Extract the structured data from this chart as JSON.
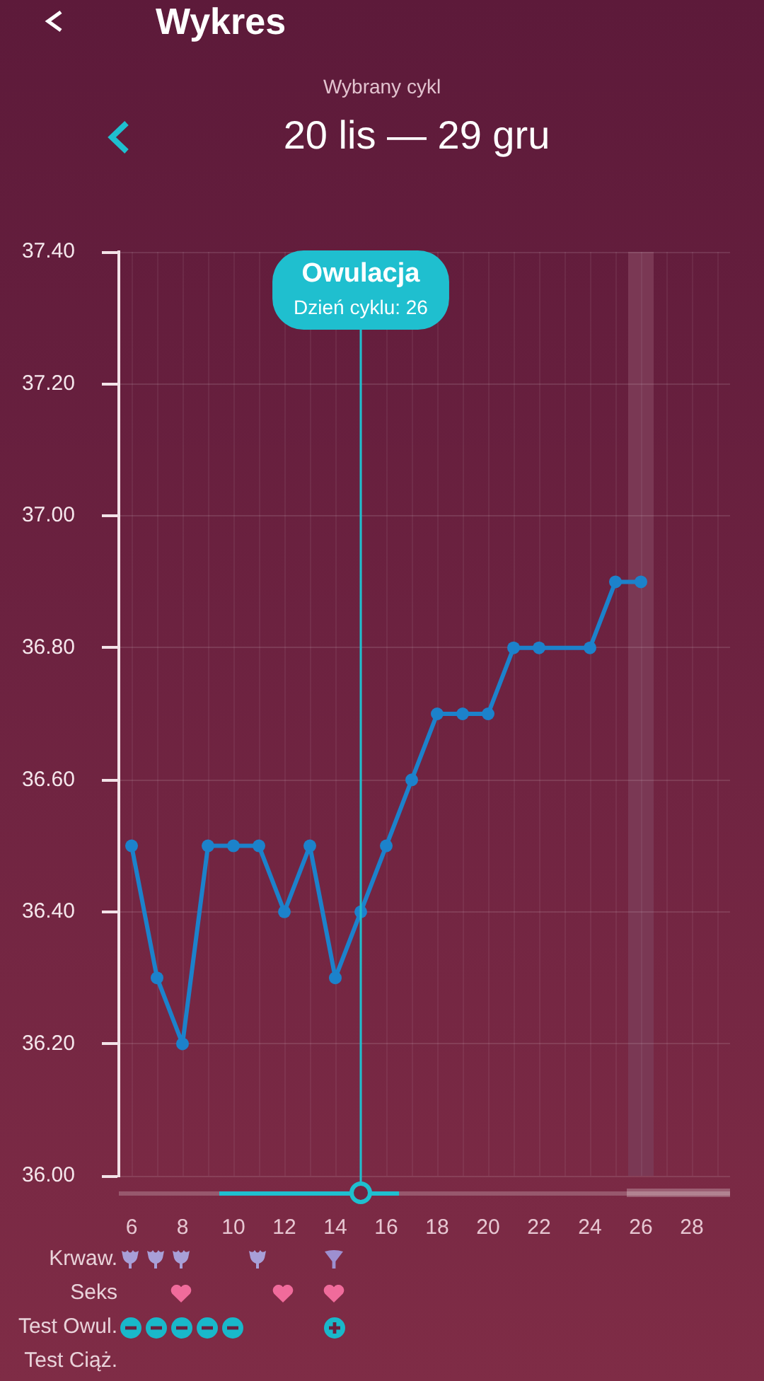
{
  "chart_data": {
    "type": "line",
    "title": "20 lis — 29 gru",
    "subtitle": "Wybrany cykl",
    "annotations": [
      "Wykres",
      "Dzień cyklu: 26",
      "Krwaw.",
      "Seks",
      "Test Owul.",
      "Test Ciąż."
    ],
    "x": [
      6,
      7,
      8,
      9,
      10,
      11,
      12,
      13,
      14,
      15,
      16,
      17,
      18,
      19,
      20,
      21,
      22,
      24,
      25,
      26
    ],
    "series": [
      {
        "color": "#1c82cb",
        "values": [
          36.5,
          36.3,
          36.2,
          36.5,
          36.5,
          36.5,
          36.4,
          36.5,
          36.3,
          36.4,
          36.5,
          36.6,
          36.7,
          36.7,
          36.7,
          36.8,
          36.8,
          36.8,
          36.9,
          36.9
        ]
      }
    ],
    "xlim": [
      5.5,
      29.5
    ],
    "xticks": [
      6,
      {
        "value": 7,
        "label": null
      },
      8,
      {
        "value": 9,
        "label": null
      },
      10,
      {
        "value": 11,
        "label": null
      },
      12,
      {
        "value": 13,
        "label": null
      },
      14,
      {
        "value": 15,
        "label": null
      },
      16,
      {
        "value": 17,
        "label": null
      },
      18,
      {
        "value": 19,
        "label": null
      },
      20,
      {
        "value": 21,
        "label": null
      },
      22,
      {
        "value": 23,
        "label": null
      },
      24,
      {
        "value": 25,
        "label": null
      },
      26,
      {
        "value": 27,
        "label": null
      },
      28,
      {
        "value": 29,
        "label": null
      }
    ],
    "ylim": [
      36,
      37.4
    ],
    "yticks": [
      {
        "value": 36,
        "label": "36.00"
      },
      {
        "value": 36.2,
        "label": "36.20"
      },
      {
        "value": 36.4,
        "label": "36.40"
      },
      {
        "value": 36.6,
        "label": "36.60"
      },
      {
        "value": 36.8,
        "label": "36.80"
      },
      {
        "value": 37,
        "label": "37.00"
      },
      {
        "value": 37.2,
        "label": "37.20"
      },
      {
        "value": 37.4,
        "label": "37.40"
      }
    ],
    "grid": true,
    "marker": "circle",
    "ref_lines": [
      {
        "axis": "x",
        "value": 15,
        "label": "Owulacja",
        "color": "#1fbfcf"
      }
    ],
    "bands": [
      {
        "axis": "x",
        "from": 25.5,
        "to": 26.5,
        "color": "#7a3854"
      }
    ]
  }
}
